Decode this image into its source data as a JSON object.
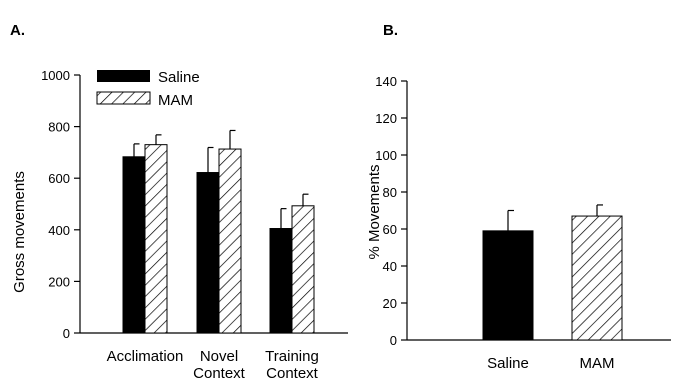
{
  "chart_data": [
    {
      "panel": "A.",
      "type": "bar",
      "categories": [
        [
          "Acclimation"
        ],
        [
          "Novel",
          "Context"
        ],
        [
          "Training",
          "Context"
        ]
      ],
      "series": [
        {
          "name": "Saline",
          "values": [
            683,
            622,
            405
          ],
          "error": [
            50,
            97,
            77
          ],
          "fill": "solid"
        },
        {
          "name": "MAM",
          "values": [
            730,
            713,
            493
          ],
          "error": [
            38,
            72,
            45
          ],
          "fill": "hatch"
        }
      ],
      "ylabel": "Gross movements",
      "ylim": [
        0,
        1000
      ],
      "yticks": [
        0,
        200,
        400,
        600,
        800,
        1000
      ],
      "legend": "top-left",
      "grid": false
    },
    {
      "panel": "B.",
      "type": "bar",
      "categories": [
        [
          "Saline"
        ],
        [
          "MAM"
        ]
      ],
      "series": [
        {
          "name": "",
          "values": [
            59,
            67
          ],
          "error": [
            11,
            6
          ],
          "fill": [
            "solid",
            "hatch"
          ]
        }
      ],
      "ylabel": "% Movements",
      "ylim": [
        0,
        140
      ],
      "yticks": [
        0,
        20,
        40,
        60,
        80,
        100,
        120,
        140
      ],
      "legend": "none",
      "grid": false
    }
  ]
}
